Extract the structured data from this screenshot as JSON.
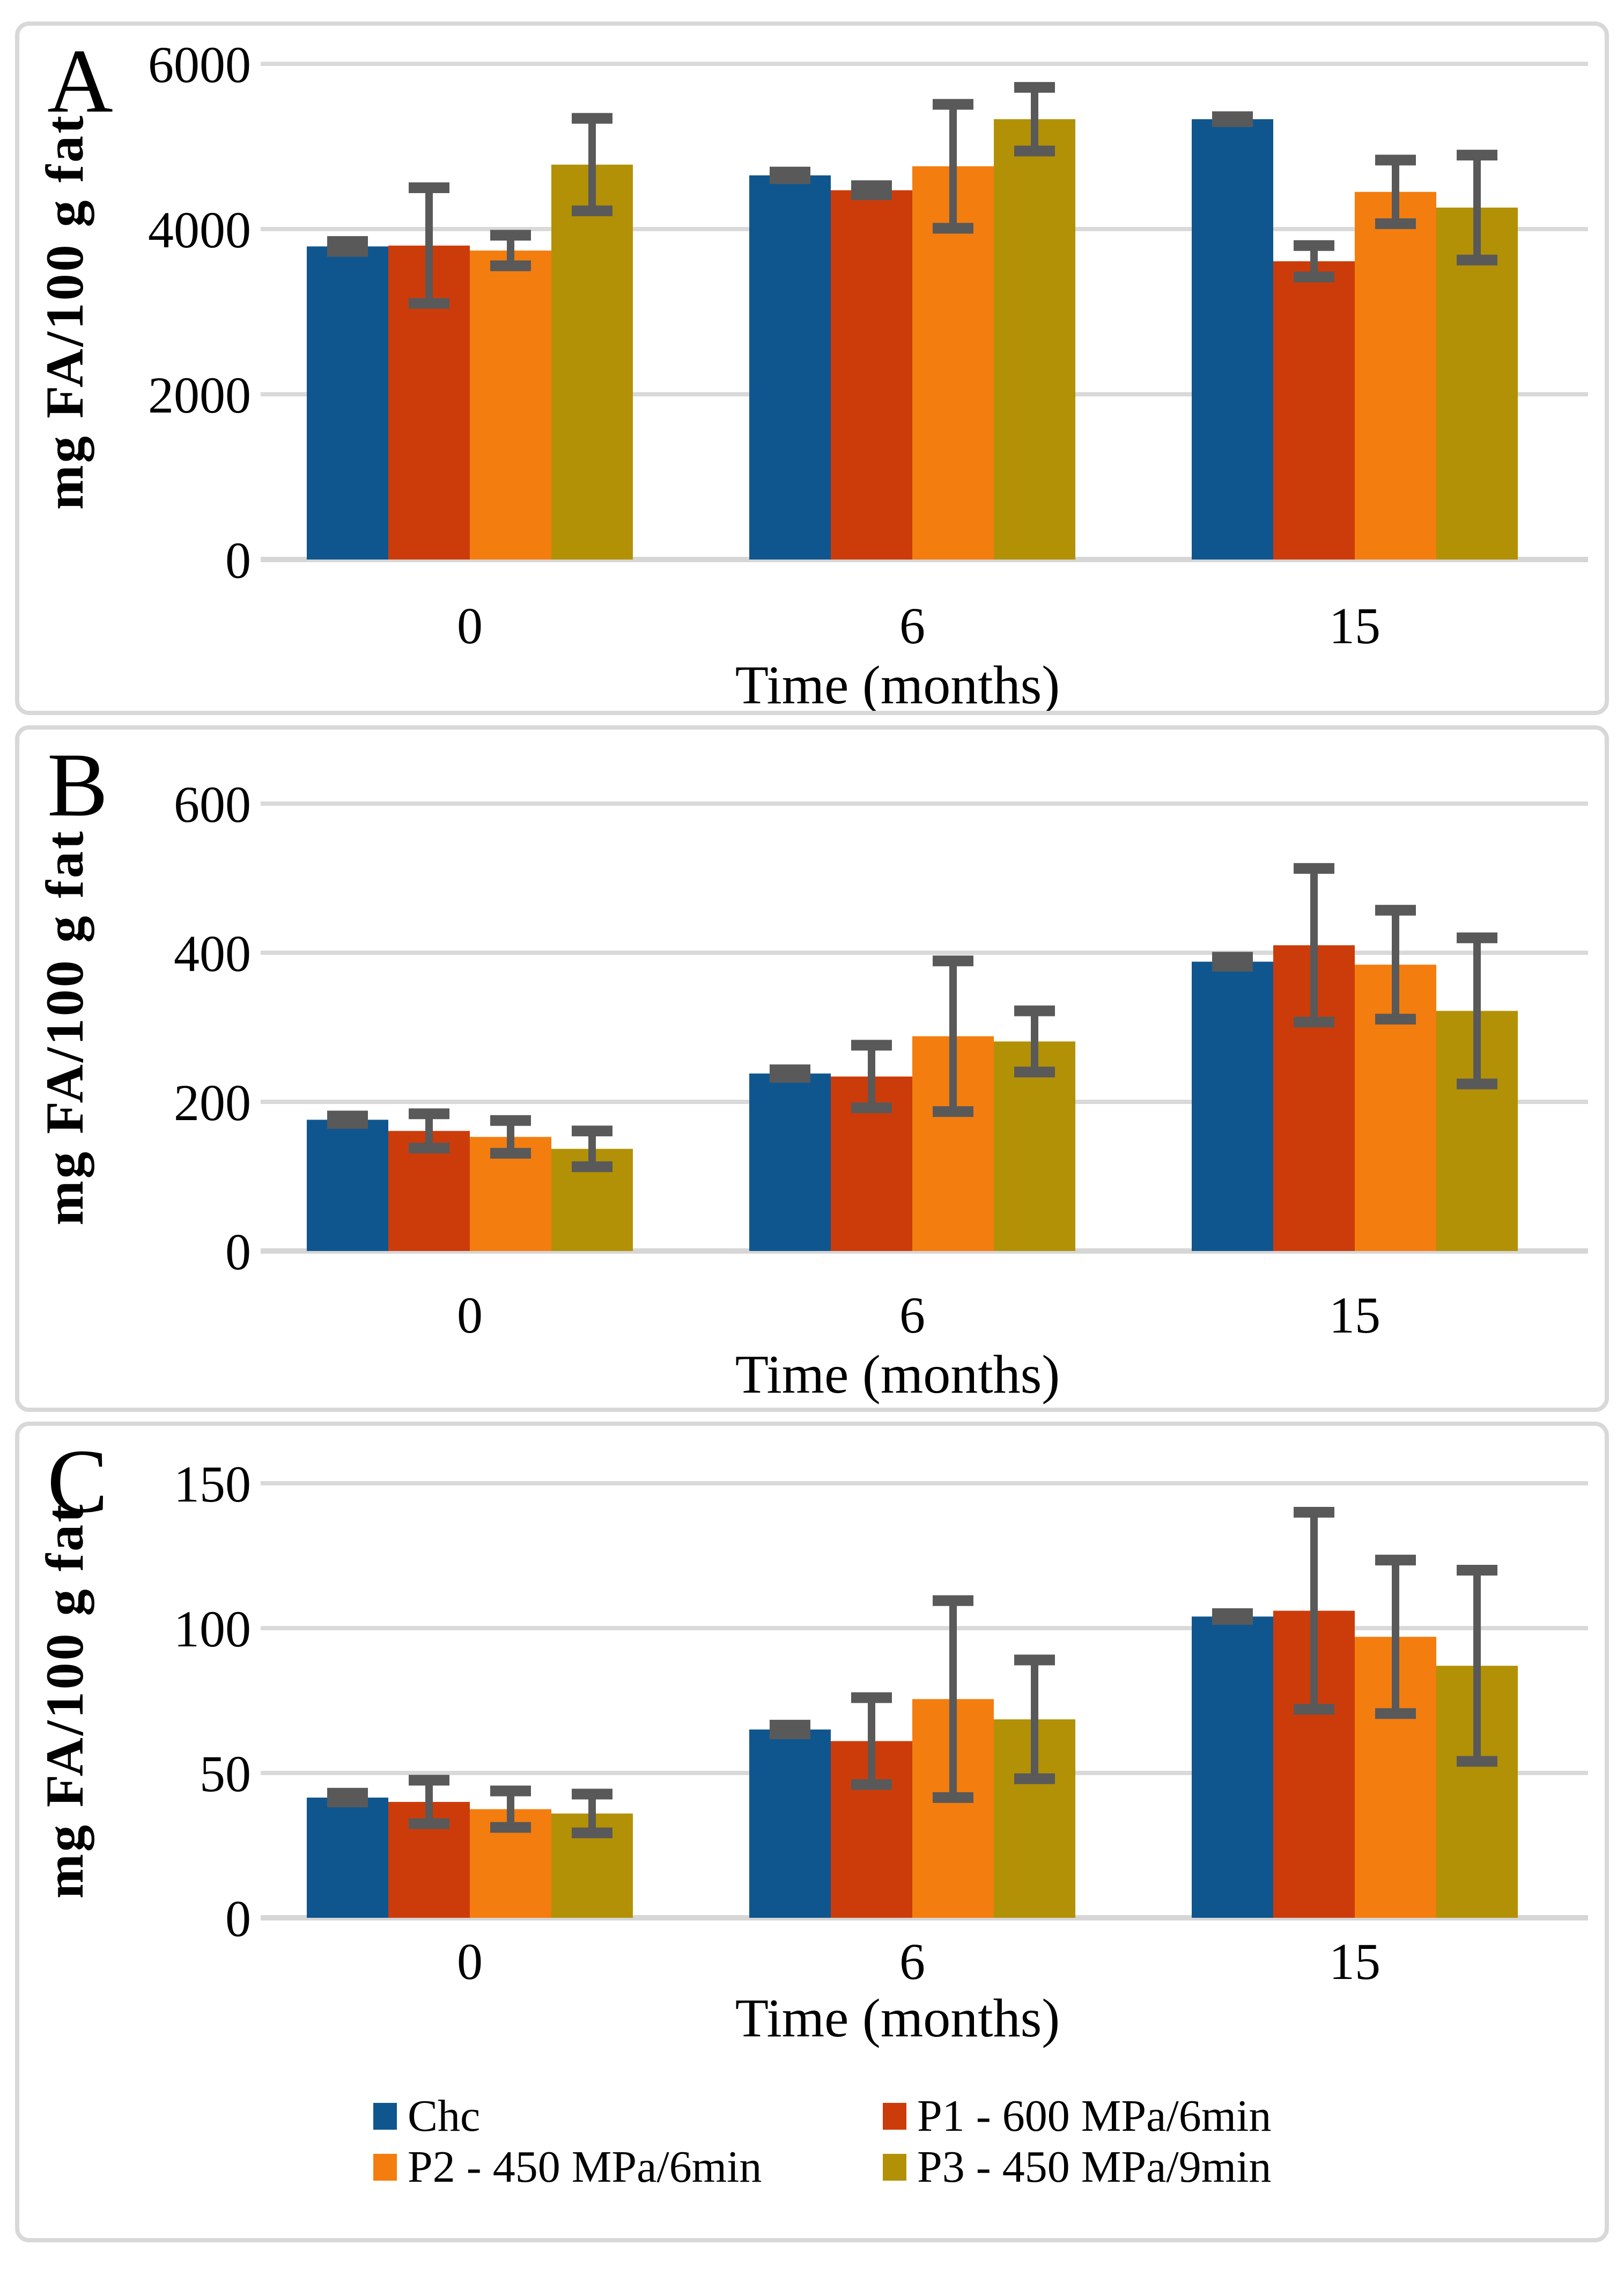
{
  "figure": {
    "type": "multi-panel bar chart figure",
    "x_axis_title": "Time (months)",
    "y_axis_title": "mg FA/100 g  fat"
  },
  "legend": {
    "position": "bottom",
    "items": [
      {
        "label": "Chc",
        "color": "#10568E"
      },
      {
        "label": "P1 - 600 MPa/6min",
        "color": "#CC3C0A"
      },
      {
        "label": "P2 - 450 MPa/6min",
        "color": "#F47D0F"
      },
      {
        "label": "P3 - 450 MPa/9min",
        "color": "#B29107"
      }
    ]
  },
  "chart_data": [
    {
      "type": "bar",
      "panel_label": "A",
      "title": "",
      "xlabel": "Time (months)",
      "ylabel": "mg FA/100 g  fat",
      "categories": [
        "0",
        "6",
        "15"
      ],
      "y_ticks": [
        0,
        2000,
        4000,
        6000
      ],
      "ylim": [
        0,
        6000
      ],
      "grid": true,
      "error_bars": true,
      "series": [
        {
          "name": "Chc",
          "color": "#10568E",
          "values": [
            3790,
            4650,
            5330
          ],
          "errors": [
            60,
            40,
            30
          ]
        },
        {
          "name": "P1 - 600 MPa/6min",
          "color": "#CC3C0A",
          "values": [
            3800,
            4470,
            3610
          ],
          "errors": [
            700,
            55,
            190
          ]
        },
        {
          "name": "P2 - 450 MPa/6min",
          "color": "#F47D0F",
          "values": [
            3740,
            4760,
            4450
          ],
          "errors": [
            185,
            750,
            385
          ]
        },
        {
          "name": "P3 - 450 MPa/9min",
          "color": "#B29107",
          "values": [
            4780,
            5330,
            4260
          ],
          "errors": [
            560,
            385,
            635
          ]
        }
      ]
    },
    {
      "type": "bar",
      "panel_label": "B",
      "title": "",
      "xlabel": "Time (months)",
      "ylabel": "mg FA/100 g  fat",
      "categories": [
        "0",
        "6",
        "15"
      ],
      "y_ticks": [
        0,
        200,
        400,
        600
      ],
      "ylim": [
        0,
        600
      ],
      "grid": true,
      "error_bars": true,
      "series": [
        {
          "name": "Chc",
          "color": "#10568E",
          "values": [
            176,
            238,
            388
          ],
          "errors": [
            5,
            5,
            6
          ]
        },
        {
          "name": "P1 - 600 MPa/6min",
          "color": "#CC3C0A",
          "values": [
            161,
            234,
            410
          ],
          "errors": [
            23,
            42,
            103
          ]
        },
        {
          "name": "P2 - 450 MPa/6min",
          "color": "#F47D0F",
          "values": [
            153,
            288,
            384
          ],
          "errors": [
            22,
            101,
            73
          ]
        },
        {
          "name": "P3 - 450 MPa/9min",
          "color": "#B29107",
          "values": [
            137,
            281,
            322
          ],
          "errors": [
            24,
            41,
            98
          ]
        }
      ]
    },
    {
      "type": "bar",
      "panel_label": "C",
      "title": "",
      "xlabel": "Time (months)",
      "ylabel": "mg FA/100 g  fat",
      "categories": [
        "0",
        "6",
        "15"
      ],
      "y_ticks": [
        0,
        50,
        100,
        150
      ],
      "ylim": [
        0,
        150
      ],
      "grid": true,
      "error_bars": true,
      "series": [
        {
          "name": "Chc",
          "color": "#10568E",
          "values": [
            41.5,
            65,
            104
          ],
          "errors": [
            1.5,
            1.5,
            1
          ]
        },
        {
          "name": "P1 - 600 MPa/6min",
          "color": "#CC3C0A",
          "values": [
            40,
            61,
            106
          ],
          "errors": [
            7.5,
            15,
            34
          ]
        },
        {
          "name": "P2 - 450 MPa/6min",
          "color": "#F47D0F",
          "values": [
            37.5,
            75.5,
            97
          ],
          "errors": [
            6.3,
            34,
            26.5
          ]
        },
        {
          "name": "P3 - 450 MPa/9min",
          "color": "#B29107",
          "values": [
            36,
            68.5,
            87
          ],
          "errors": [
            6.7,
            20.5,
            33
          ]
        }
      ]
    }
  ],
  "style": {
    "grid_color": "#D9D9D9",
    "axis_color": "#D6D6D6",
    "error_bar_color": "#595959",
    "frame_color": "#D8D8D8"
  }
}
